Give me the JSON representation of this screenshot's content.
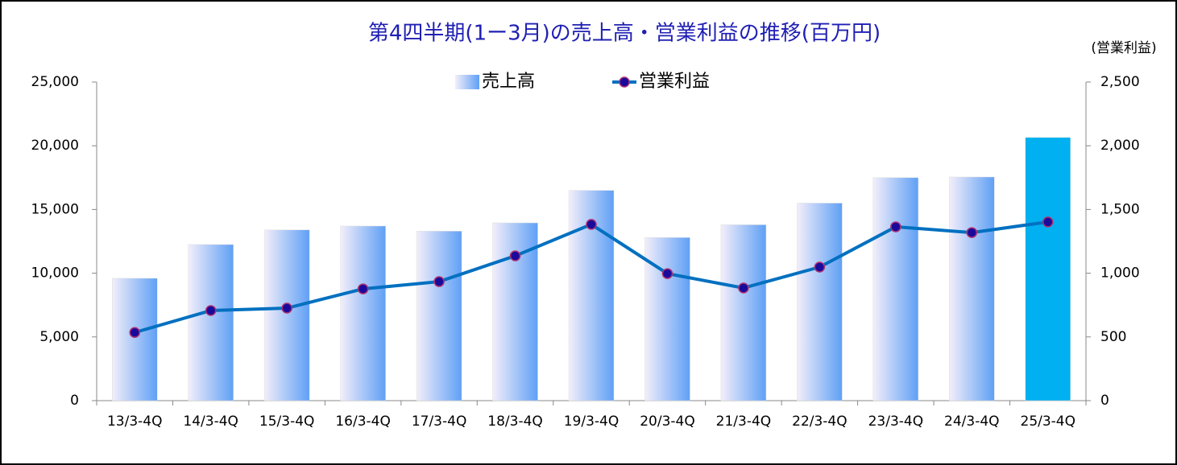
{
  "chart_data": {
    "type": "bar_line",
    "title": "第4四半期(1ー3月)の売上高・営業利益の推移(百万円)",
    "y2_label": "(営業利益)",
    "categories": [
      "13/3-4Q",
      "14/3-4Q",
      "15/3-4Q",
      "16/3-4Q",
      "17/3-4Q",
      "18/3-4Q",
      "19/3-4Q",
      "20/3-4Q",
      "21/3-4Q",
      "22/3-4Q",
      "23/3-4Q",
      "24/3-4Q",
      "25/3-4Q"
    ],
    "series": [
      {
        "name": "売上高",
        "type": "bar",
        "color": "#5fa0f5",
        "gradient": true,
        "colors": [
          "#5fa0f5",
          "#5fa0f5",
          "#5fa0f5",
          "#5fa0f5",
          "#5fa0f5",
          "#5fa0f5",
          "#5fa0f5",
          "#5fa0f5",
          "#5fa0f5",
          "#5fa0f5",
          "#5fa0f5",
          "#5fa0f5",
          "#00b0f0"
        ],
        "values": [
          9600,
          12250,
          13400,
          13700,
          13300,
          13950,
          16500,
          12800,
          13800,
          15500,
          17500,
          17550,
          20650
        ]
      },
      {
        "name": "営業利益",
        "type": "line",
        "axis": "y2",
        "color": "#0070c0",
        "marker_color": "#1a0a9c",
        "values": [
          535,
          707,
          726,
          877,
          934,
          1136,
          1383,
          997,
          884,
          1048,
          1364,
          1319,
          1402
        ]
      }
    ],
    "ylim": [
      0,
      25000
    ],
    "yticks": [
      0,
      {
        "value": 5000,
        "label": "5,000"
      },
      {
        "value": 10000,
        "label": "10,000"
      },
      {
        "value": 15000,
        "label": "15,000"
      },
      {
        "value": 20000,
        "label": "20,000"
      },
      {
        "value": 25000,
        "label": "25,000"
      }
    ],
    "y2lim": [
      0,
      2500
    ],
    "y2ticks": [
      0,
      500,
      {
        "value": 1000,
        "label": "1,000"
      },
      {
        "value": 1500,
        "label": "1,500"
      },
      {
        "value": 2000,
        "label": "2,000"
      },
      {
        "value": 2500,
        "label": "2,500"
      }
    ],
    "grid": false,
    "legend": "top"
  }
}
